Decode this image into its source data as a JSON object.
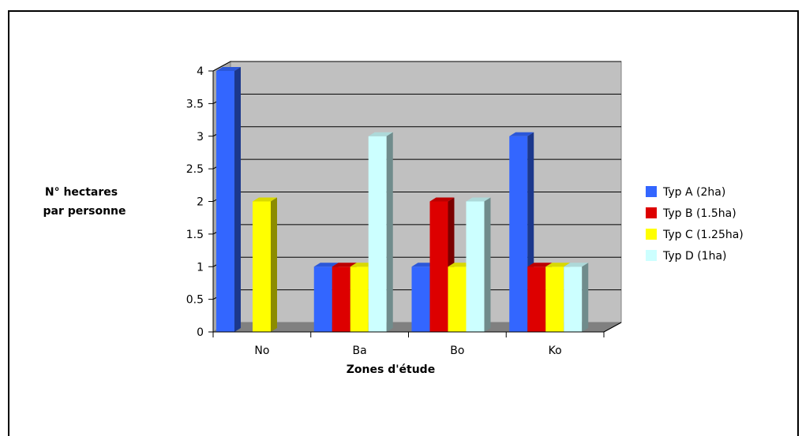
{
  "chart_data": {
    "type": "bar",
    "title": "",
    "xlabel": "Zones d'étude",
    "ylabel": [
      "N° hectares",
      "par personne"
    ],
    "categories": [
      "No",
      "Ba",
      "Bo",
      "Ko"
    ],
    "ylim": [
      0,
      4
    ],
    "yticks": [
      "0",
      "0.5",
      "1",
      "1.5",
      "2",
      "2.5",
      "3",
      "3.5",
      "4"
    ],
    "grid": true,
    "legend_position": "right",
    "series": [
      {
        "name": "Typ A (2ha)",
        "color": "#3366ff",
        "values": [
          4,
          1,
          1,
          3
        ]
      },
      {
        "name": "Typ B (1.5ha)",
        "color": "#dd0000",
        "values": [
          0,
          1,
          2,
          1
        ]
      },
      {
        "name": "Typ C (1.25ha)",
        "color": "#ffff00",
        "values": [
          2,
          1,
          1,
          1
        ]
      },
      {
        "name": "Typ D (1ha)",
        "color": "#ccffff",
        "values": [
          0,
          3,
          2,
          1
        ]
      }
    ]
  }
}
